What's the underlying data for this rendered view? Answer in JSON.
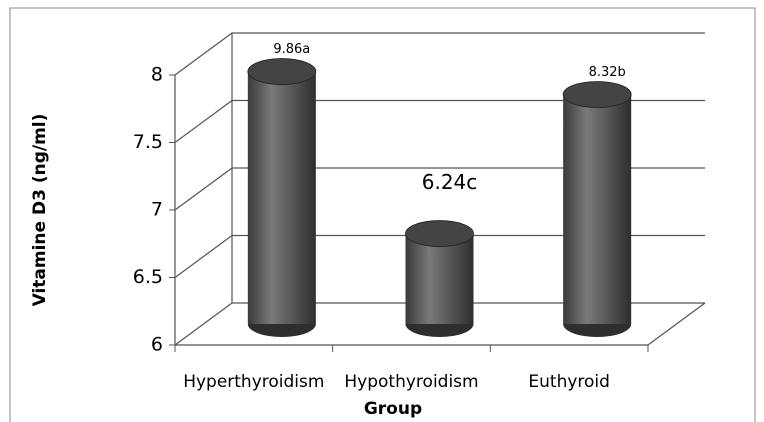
{
  "chart_data": {
    "type": "bar",
    "categories": [
      "Hyperthyroidism",
      "Hypothyroidism",
      "Euthyroid"
    ],
    "values": [
      7.87,
      6.67,
      7.7
    ],
    "annotations": [
      "9.86a",
      "6.24c",
      "8.32b"
    ],
    "color": "#555555",
    "x_label": "Group",
    "y_label": "Vitamine D3 (ng/ml)",
    "ylim": [
      6,
      8
    ],
    "yticks": [
      6,
      6.5,
      7,
      7.5,
      8
    ],
    "grid": true
  }
}
